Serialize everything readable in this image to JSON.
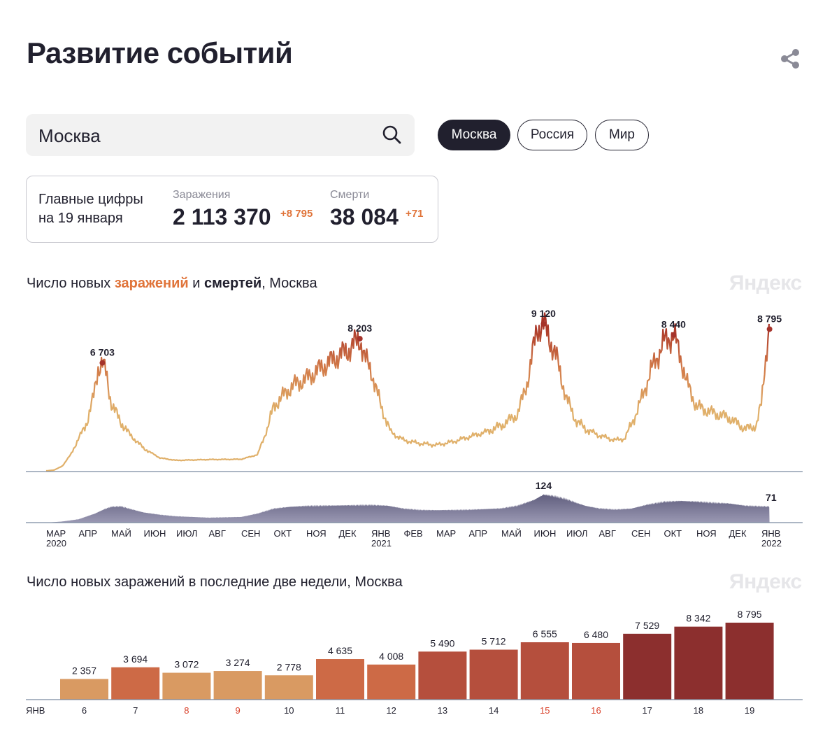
{
  "page_title": "Развитие событий",
  "search": {
    "value": "Москва"
  },
  "region_tabs": [
    {
      "label": "Москва",
      "active": true
    },
    {
      "label": "Россия",
      "active": false
    },
    {
      "label": "Мир",
      "active": false
    }
  ],
  "summary": {
    "heading_line1": "Главные цифры",
    "heading_line2": "на 19 января",
    "infections_label": "Заражения",
    "infections_value": "2 113 370",
    "infections_delta": "+8 795",
    "deaths_label": "Смерти",
    "deaths_value": "38 084",
    "deaths_delta": "+71"
  },
  "chart1": {
    "title_prefix": "Число новых ",
    "title_infections": "заражений",
    "title_and": " и ",
    "title_deaths": "смертей",
    "title_suffix": ", Москва",
    "watermark": "Яндекс"
  },
  "chart2": {
    "title": "Число новых заражений в последние две недели, Москва",
    "watermark": "Яндекс"
  },
  "colors": {
    "text": "#21202e",
    "accent_orange": "#e0743a",
    "infections_low": "#e0b06a",
    "infections_high": "#a83226",
    "deaths_fill": "#4f4d6e",
    "weekend_red": "#d9412a",
    "axis": "#7b8aa0"
  },
  "icons": {
    "share": "share-icon",
    "search": "search-icon"
  },
  "chart_data": [
    {
      "type": "area",
      "chart": "new-infections-daily",
      "x_unit": "month",
      "month_ticks": [
        {
          "label": "МАР",
          "year": "2020"
        },
        {
          "label": "АПР"
        },
        {
          "label": "МАЙ"
        },
        {
          "label": "ИЮН"
        },
        {
          "label": "ИЮЛ"
        },
        {
          "label": "АВГ"
        },
        {
          "label": "СЕН"
        },
        {
          "label": "ОКТ"
        },
        {
          "label": "НОЯ"
        },
        {
          "label": "ДЕК"
        },
        {
          "label": "ЯНВ",
          "year": "2021"
        },
        {
          "label": "ФЕВ"
        },
        {
          "label": "МАР"
        },
        {
          "label": "АПР"
        },
        {
          "label": "МАЙ"
        },
        {
          "label": "ИЮН"
        },
        {
          "label": "ИЮЛ"
        },
        {
          "label": "АВГ"
        },
        {
          "label": "СЕН"
        },
        {
          "label": "ОКТ"
        },
        {
          "label": "НОЯ"
        },
        {
          "label": "ДЕК"
        },
        {
          "label": "ЯНВ",
          "year": "2022"
        }
      ],
      "infection_keypoints": [
        [
          0,
          0
        ],
        [
          0.25,
          50
        ],
        [
          0.5,
          300
        ],
        [
          0.75,
          1000
        ],
        [
          1.0,
          2000
        ],
        [
          1.25,
          3000
        ],
        [
          1.45,
          4500
        ],
        [
          1.6,
          6400
        ],
        [
          1.73,
          6703
        ],
        [
          1.85,
          6000
        ],
        [
          2.0,
          4200
        ],
        [
          2.3,
          3000
        ],
        [
          2.6,
          2200
        ],
        [
          3.0,
          1400
        ],
        [
          3.5,
          800
        ],
        [
          4.0,
          650
        ],
        [
          5.0,
          700
        ],
        [
          6.0,
          720
        ],
        [
          6.5,
          1000
        ],
        [
          6.8,
          2600
        ],
        [
          7.0,
          4000
        ],
        [
          7.3,
          4700
        ],
        [
          7.6,
          5300
        ],
        [
          8.0,
          5700
        ],
        [
          8.4,
          6300
        ],
        [
          8.9,
          7000
        ],
        [
          9.3,
          7500
        ],
        [
          9.65,
          8203
        ],
        [
          9.8,
          7000
        ],
        [
          10.0,
          6200
        ],
        [
          10.3,
          4000
        ],
        [
          10.6,
          2400
        ],
        [
          11.0,
          1900
        ],
        [
          11.5,
          1700
        ],
        [
          12.0,
          1600
        ],
        [
          12.5,
          1800
        ],
        [
          13.0,
          2100
        ],
        [
          13.5,
          2400
        ],
        [
          14.0,
          2800
        ],
        [
          14.5,
          3500
        ],
        [
          14.8,
          5500
        ],
        [
          15.1,
          8800
        ],
        [
          15.3,
          9120
        ],
        [
          15.5,
          8100
        ],
        [
          15.7,
          7000
        ],
        [
          16.0,
          4500
        ],
        [
          16.3,
          3100
        ],
        [
          16.6,
          2600
        ],
        [
          17.0,
          2200
        ],
        [
          17.5,
          1900
        ],
        [
          17.8,
          2000
        ],
        [
          18.2,
          3800
        ],
        [
          18.6,
          6200
        ],
        [
          19.0,
          8000
        ],
        [
          19.3,
          8440
        ],
        [
          19.5,
          7200
        ],
        [
          19.7,
          5500
        ],
        [
          20.0,
          4000
        ],
        [
          20.5,
          3600
        ],
        [
          21.0,
          3300
        ],
        [
          21.5,
          2600
        ],
        [
          21.85,
          2800
        ],
        [
          22.0,
          4200
        ],
        [
          22.1,
          6500
        ],
        [
          22.2,
          8200
        ],
        [
          22.25,
          8795
        ]
      ],
      "deaths_keypoints": [
        [
          0,
          0
        ],
        [
          0.5,
          5
        ],
        [
          1.0,
          15
        ],
        [
          1.5,
          40
        ],
        [
          1.8,
          60
        ],
        [
          2.0,
          70
        ],
        [
          2.3,
          72
        ],
        [
          2.6,
          60
        ],
        [
          3.0,
          45
        ],
        [
          3.5,
          35
        ],
        [
          4.0,
          28
        ],
        [
          4.5,
          25
        ],
        [
          5.0,
          22
        ],
        [
          6.0,
          25
        ],
        [
          6.5,
          40
        ],
        [
          7.0,
          62
        ],
        [
          7.5,
          70
        ],
        [
          8.0,
          74
        ],
        [
          8.5,
          75
        ],
        [
          9.0,
          76
        ],
        [
          10.0,
          78
        ],
        [
          10.5,
          75
        ],
        [
          11.0,
          62
        ],
        [
          11.5,
          56
        ],
        [
          12.0,
          55
        ],
        [
          13.0,
          57
        ],
        [
          14.0,
          63
        ],
        [
          14.5,
          75
        ],
        [
          15.0,
          100
        ],
        [
          15.3,
          124
        ],
        [
          15.6,
          118
        ],
        [
          16.0,
          104
        ],
        [
          16.3,
          88
        ],
        [
          16.6,
          74
        ],
        [
          17.0,
          63
        ],
        [
          17.5,
          58
        ],
        [
          18.0,
          62
        ],
        [
          18.5,
          80
        ],
        [
          19.0,
          92
        ],
        [
          19.5,
          96
        ],
        [
          20.0,
          93
        ],
        [
          20.5,
          88
        ],
        [
          21.0,
          85
        ],
        [
          21.5,
          75
        ],
        [
          22.0,
          72
        ],
        [
          22.25,
          71
        ]
      ],
      "peak_labels": [
        {
          "x": 1.73,
          "value": 6703,
          "label": "6 703"
        },
        {
          "x": 9.65,
          "value": 8203,
          "label": "8 203"
        },
        {
          "x": 15.3,
          "value": 9120,
          "label": "9 120"
        },
        {
          "x": 19.3,
          "value": 8440,
          "label": "8 440"
        },
        {
          "x": 22.25,
          "value": 8795,
          "label": "8 795"
        }
      ],
      "deaths_labels": [
        {
          "x": 15.3,
          "value": 124,
          "label": "124"
        },
        {
          "x": 22.25,
          "value": 71,
          "label": "71"
        }
      ],
      "series": [
        {
          "name": "заражений"
        },
        {
          "name": "смертей"
        }
      ],
      "ylim_infections": [
        0,
        9120
      ],
      "ylim_deaths": [
        0,
        124
      ]
    },
    {
      "type": "bar",
      "chart": "last-two-weeks",
      "month_label": "ЯНВ",
      "categories": [
        "6",
        "7",
        "8",
        "9",
        "10",
        "11",
        "12",
        "13",
        "14",
        "15",
        "16",
        "17",
        "18",
        "19"
      ],
      "weekend": [
        false,
        false,
        true,
        true,
        false,
        false,
        false,
        false,
        false,
        true,
        true,
        false,
        false,
        false
      ],
      "values": [
        2357,
        3694,
        3072,
        3274,
        2778,
        4635,
        4008,
        5490,
        5712,
        6555,
        6480,
        7529,
        8342,
        8795
      ],
      "value_labels": [
        "2 357",
        "3 694",
        "3 072",
        "3 274",
        "2 778",
        "4 635",
        "4 008",
        "5 490",
        "5 712",
        "6 555",
        "6 480",
        "7 529",
        "8 342",
        "8 795"
      ],
      "ylim": [
        0,
        8795
      ]
    }
  ]
}
